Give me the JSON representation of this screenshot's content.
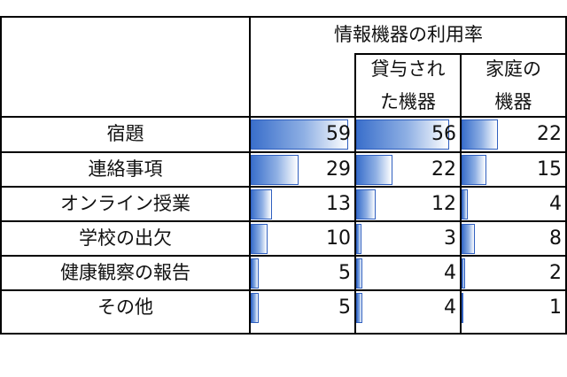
{
  "chart_data": {
    "type": "table",
    "title": "情報機器の利用率",
    "columns": [
      {
        "label_lines": [
          "",
          ""
        ],
        "name": ""
      },
      {
        "label_lines": [
          "貸与され",
          "た機器"
        ],
        "name": "貸与された機器"
      },
      {
        "label_lines": [
          "家庭の",
          "機器"
        ],
        "name": "家庭の機器"
      }
    ],
    "categories": [
      "宿題",
      "連絡事項",
      "オンライン授業",
      "学校の出欠",
      "健康観察の報告",
      "その他"
    ],
    "series": [
      {
        "name": "",
        "values": [
          59,
          29,
          13,
          10,
          5,
          5
        ]
      },
      {
        "name": "貸与された機器",
        "values": [
          56,
          22,
          12,
          3,
          4,
          4
        ]
      },
      {
        "name": "家庭の機器",
        "values": [
          22,
          15,
          4,
          8,
          2,
          1
        ]
      }
    ],
    "bar_max": 60,
    "bar_gradient": [
      "#3a6fcb",
      "#8fb0e4",
      "#ffffff"
    ]
  }
}
